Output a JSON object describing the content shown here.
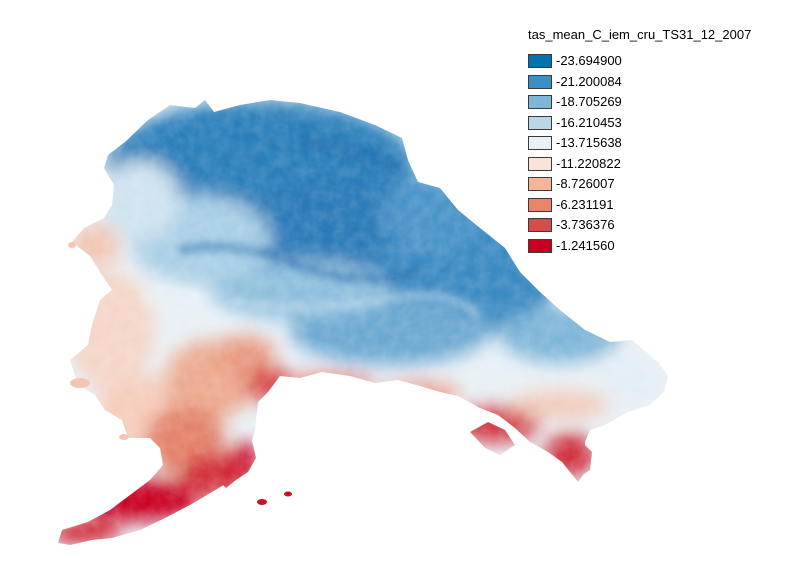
{
  "legend": {
    "title": "tas_mean_C_iem_cru_TS31_12_2007",
    "classes": [
      {
        "label": "-23.694900",
        "color": "#0571b0"
      },
      {
        "label": "-21.200084",
        "color": "#3a8fc4"
      },
      {
        "label": "-18.705269",
        "color": "#7eb6d8"
      },
      {
        "label": "-16.210453",
        "color": "#b8d8ea"
      },
      {
        "label": "-13.715638",
        "color": "#e9f1f6"
      },
      {
        "label": "-11.220822",
        "color": "#fae4da"
      },
      {
        "label": "-8.726007",
        "color": "#f4b59b"
      },
      {
        "label": "-6.231191",
        "color": "#e78469"
      },
      {
        "label": "-3.736376",
        "color": "#d94a4a"
      },
      {
        "label": "-1.241560",
        "color": "#ca0020"
      }
    ]
  }
}
